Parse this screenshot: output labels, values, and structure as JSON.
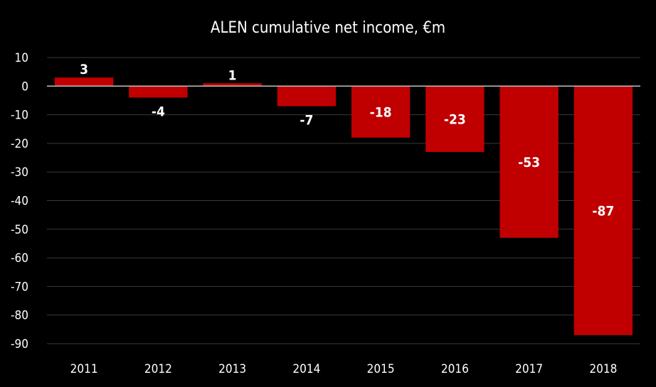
{
  "chart_data": {
    "type": "bar",
    "title": "ALEN cumulative net income, €m",
    "xlabel": "",
    "ylabel": "",
    "categories": [
      "2011",
      "2012",
      "2013",
      "2014",
      "2015",
      "2016",
      "2017",
      "2018"
    ],
    "values": [
      3,
      -4,
      1,
      -7,
      -18,
      -23,
      -53,
      -87
    ],
    "data_labels": [
      "3",
      "-4",
      "1",
      "-7",
      "-18",
      "-23",
      "-53",
      "-87"
    ],
    "ylim": [
      -90,
      10
    ],
    "yticks": [
      10,
      0,
      -10,
      -20,
      -30,
      -40,
      -50,
      -60,
      -70,
      -80,
      -90
    ],
    "grid": true,
    "legend": "none",
    "colors": {
      "background": "#000000",
      "bar": "#c00000",
      "grid": "#3a3a3a",
      "zero_line": "#bfbfbf",
      "text": "#ffffff"
    }
  }
}
